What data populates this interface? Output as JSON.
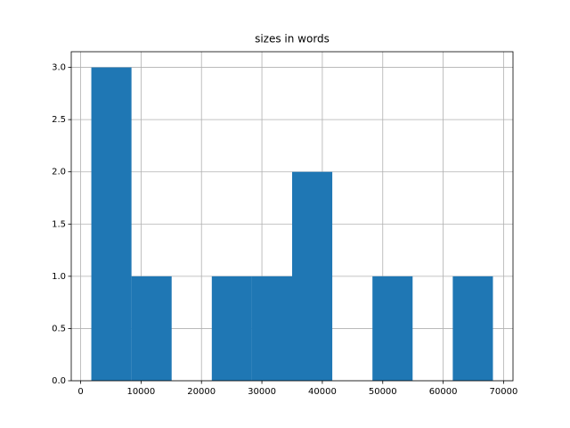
{
  "chart_data": {
    "type": "histogram",
    "title": "sizes in words",
    "bins": [
      1772,
      8418,
      15064,
      21710,
      28356,
      35002,
      41648,
      48294,
      54940,
      61586,
      68232
    ],
    "values": [
      3,
      1,
      0,
      1,
      1,
      2,
      0,
      1,
      0,
      1
    ],
    "color": "#1f77b4",
    "xlim": [
      -1551,
      71554
    ],
    "xticks": [
      0,
      10000,
      20000,
      30000,
      40000,
      50000,
      60000,
      70000
    ],
    "ylim": [
      0,
      3.15
    ],
    "yticks": [
      {
        "value": 0,
        "label": "0.0"
      },
      0.5,
      {
        "value": 1,
        "label": "1.0"
      },
      1.5,
      {
        "value": 2,
        "label": "2.0"
      },
      2.5,
      {
        "value": 3,
        "label": "3.0"
      }
    ],
    "grid": true
  }
}
